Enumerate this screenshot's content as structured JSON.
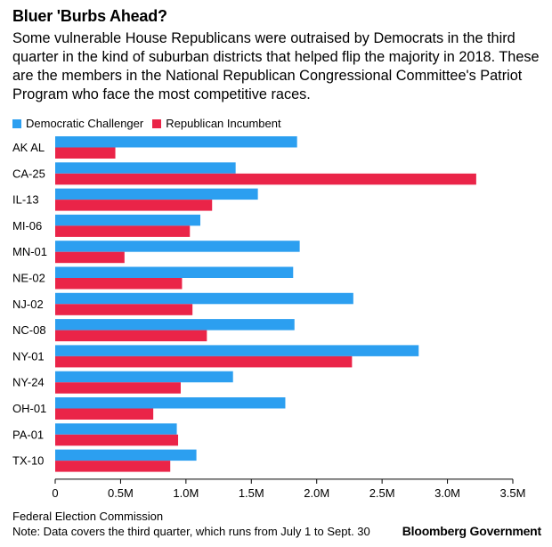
{
  "title": "Bluer 'Burbs Ahead?",
  "subtitle": "Some vulnerable House Republicans were outraised by Democrats in the third quarter in the kind of suburban districts that helped flip the majority in 2018. These are the members in the National Republican Congressional Committee's Patriot Program who face the most competitive races.",
  "source": "Federal Election Commission",
  "note": "Note: Data covers the third quarter, which runs from July 1 to Sept. 30",
  "brand": "Bloomberg Government",
  "colors": {
    "democratic": "#2c9ff0",
    "republican": "#ea2448",
    "axis": "#000000"
  },
  "chart_data": {
    "type": "bar",
    "orientation": "horizontal",
    "categories": [
      "AK AL",
      "CA-25",
      "IL-13",
      "MI-06",
      "MN-01",
      "NE-02",
      "NJ-02",
      "NC-08",
      "NY-01",
      "NY-24",
      "OH-01",
      "PA-01",
      "TX-10"
    ],
    "series": [
      {
        "name": "Democratic Challenger",
        "values": [
          1850000,
          1380000,
          1550000,
          1110000,
          1870000,
          1820000,
          2280000,
          1830000,
          2780000,
          1360000,
          1760000,
          930000,
          1080000
        ]
      },
      {
        "name": "Republican Incumbent",
        "values": [
          460000,
          3220000,
          1200000,
          1030000,
          530000,
          970000,
          1050000,
          1160000,
          2270000,
          960000,
          750000,
          940000,
          880000
        ]
      }
    ],
    "xlim": [
      0,
      3500000
    ],
    "xticks": [
      0,
      500000,
      1000000,
      1500000,
      2000000,
      2500000,
      3000000,
      3500000
    ],
    "xtick_labels": [
      "0",
      "0.5M",
      "1.0M",
      "1.5M",
      "2.0M",
      "2.5M",
      "3.0M",
      "3.5M"
    ],
    "legend_position": "top-left"
  }
}
